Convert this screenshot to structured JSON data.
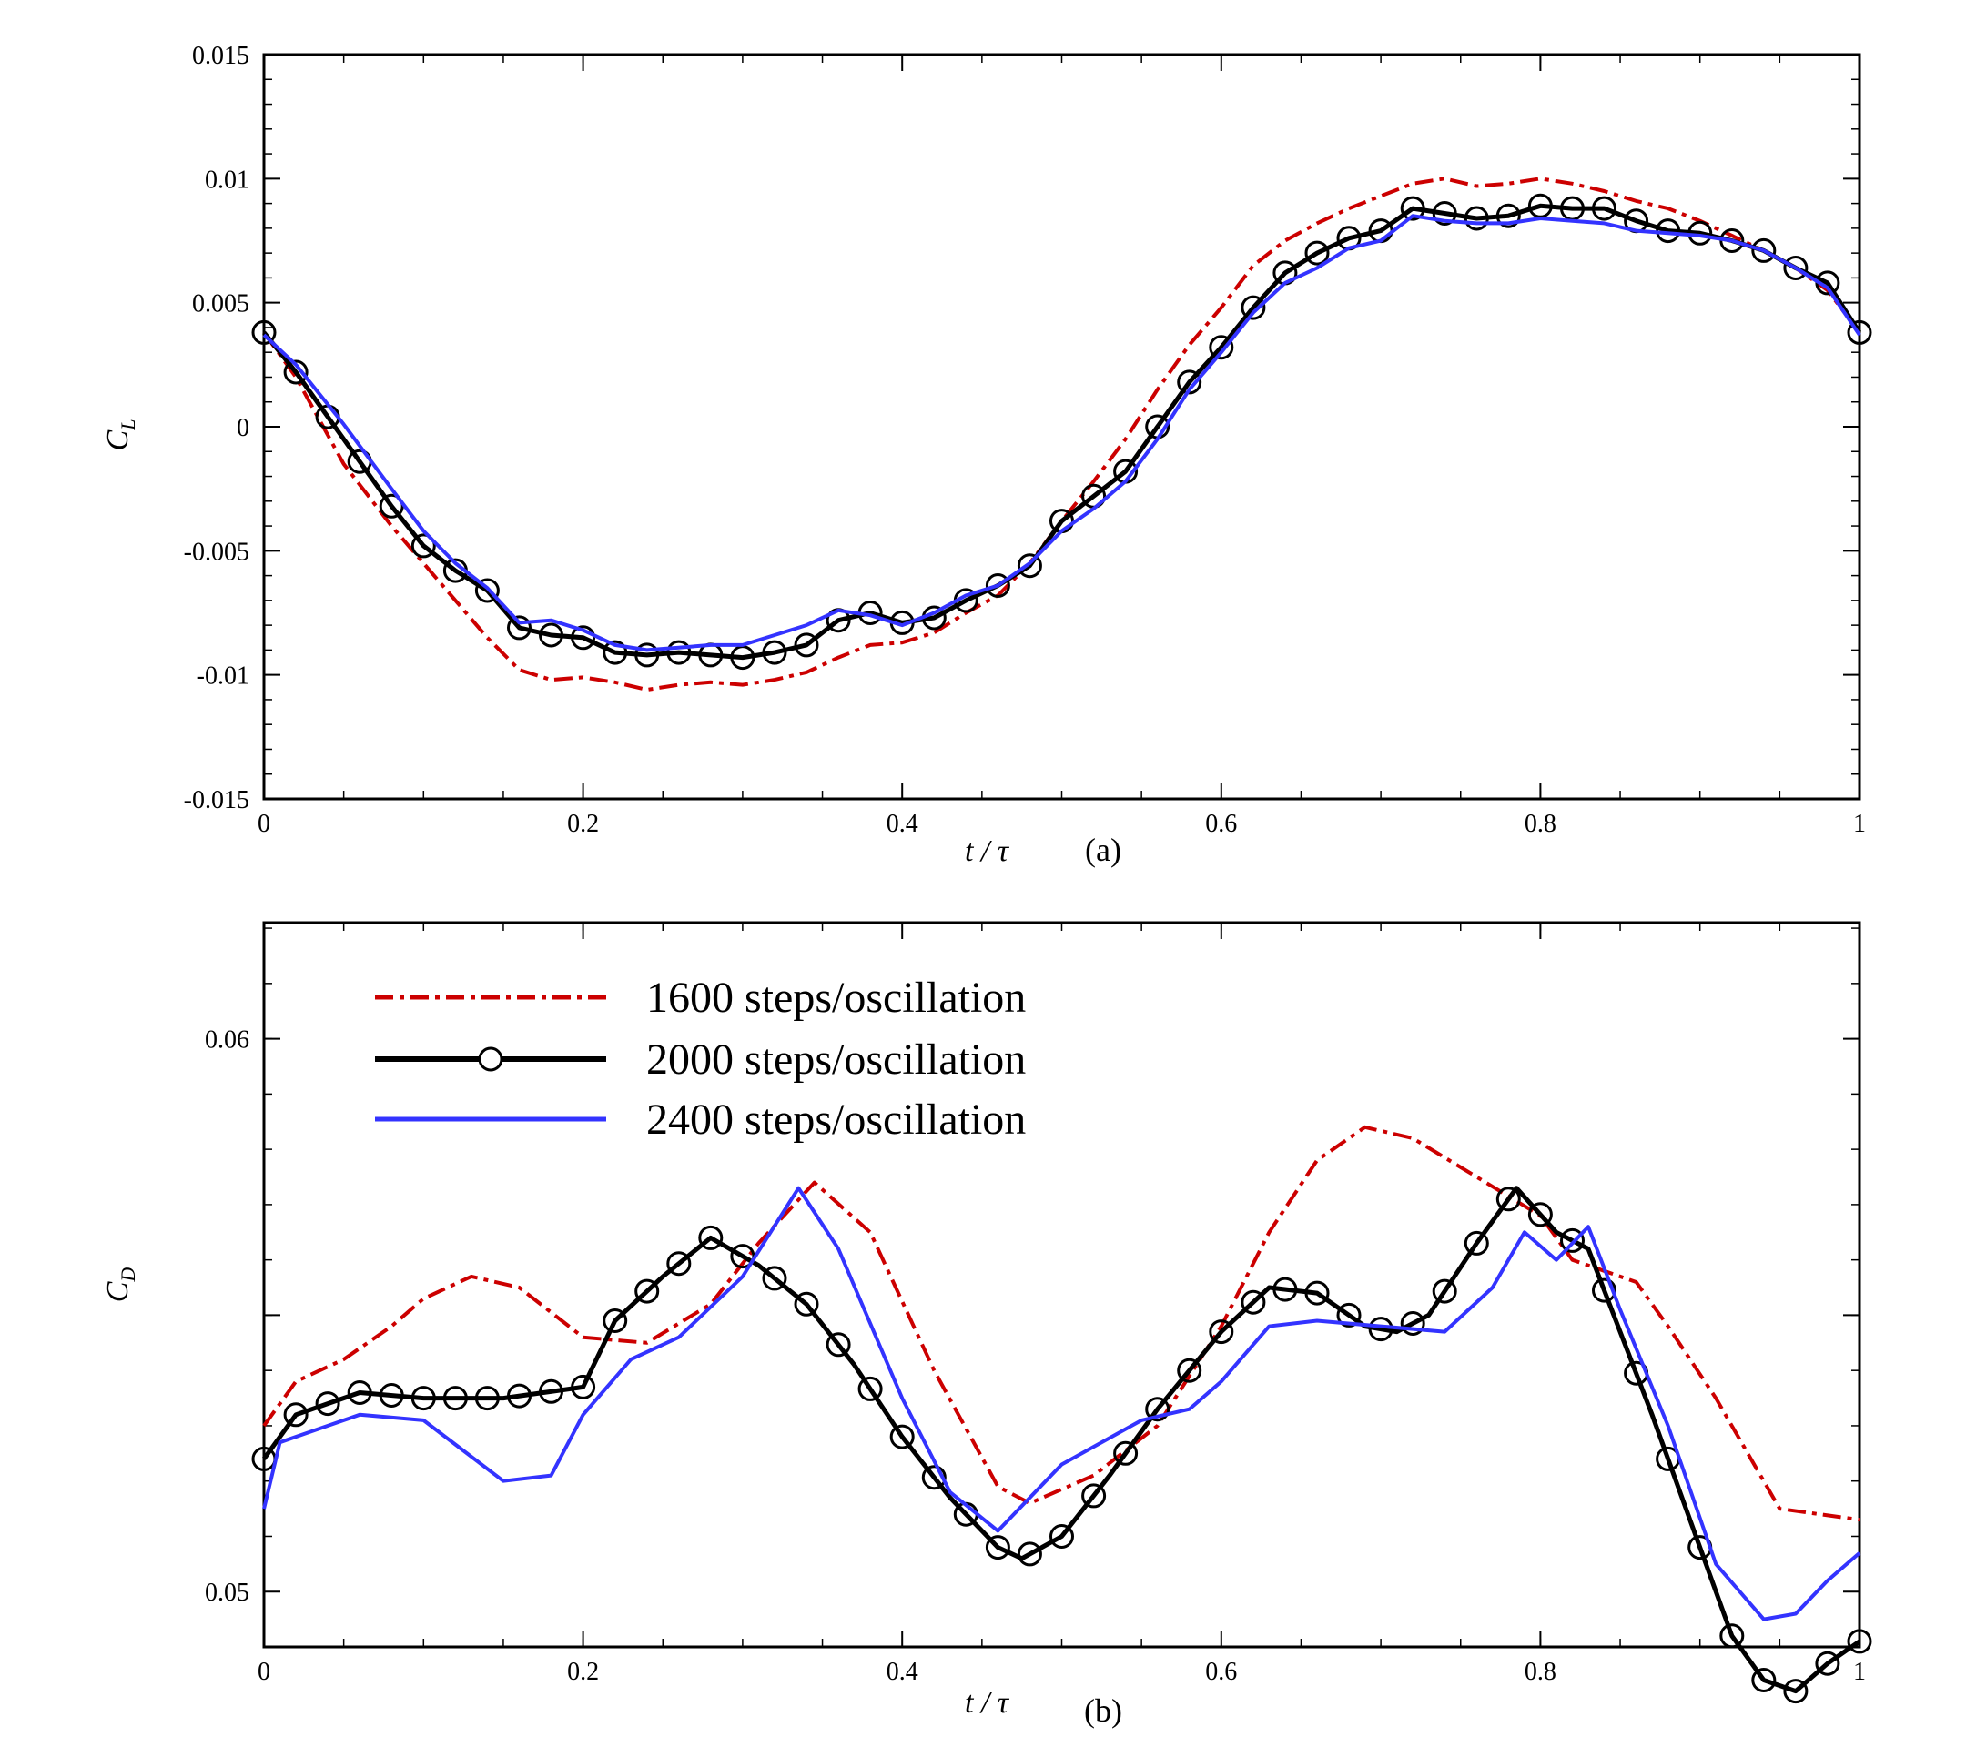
{
  "figure": {
    "series_styles": [
      {
        "name": "1600 steps/oscillation",
        "color": "#cc0000",
        "dash": "dashdot",
        "marker": "none"
      },
      {
        "name": "2000 steps/oscillation",
        "color": "#000000",
        "dash": "solid",
        "marker": "circle"
      },
      {
        "name": "2400 steps/oscillation",
        "color": "#3333ff",
        "dash": "solid",
        "marker": "none"
      }
    ]
  },
  "chart_data": [
    {
      "type": "line",
      "panel_label": "(a)",
      "xlabel": "t / τ",
      "ylabel": "C",
      "ylabel_sub": "L",
      "xlim": [
        0,
        1
      ],
      "ylim": [
        -0.015,
        0.015
      ],
      "xticks": [
        0,
        0.2,
        0.4,
        0.6,
        0.8,
        1
      ],
      "xtick_labels": [
        "0",
        "0.2",
        "0.4",
        "0.6",
        "0.8",
        "1"
      ],
      "yticks": [
        -0.015,
        -0.01,
        -0.005,
        0,
        0.005,
        0.01,
        0.015
      ],
      "ytick_labels": [
        "-0.015",
        "-0.01",
        "-0.005",
        "0",
        "0.005",
        "0.01",
        "0.015"
      ],
      "series": [
        {
          "name": "1600 steps/oscillation",
          "x": [
            0,
            0.02,
            0.05,
            0.08,
            0.1,
            0.12,
            0.14,
            0.16,
            0.18,
            0.2,
            0.22,
            0.24,
            0.26,
            0.28,
            0.3,
            0.32,
            0.34,
            0.36,
            0.38,
            0.4,
            0.42,
            0.44,
            0.46,
            0.48,
            0.5,
            0.52,
            0.54,
            0.56,
            0.58,
            0.6,
            0.62,
            0.64,
            0.66,
            0.68,
            0.7,
            0.72,
            0.74,
            0.76,
            0.78,
            0.8,
            0.82,
            0.84,
            0.86,
            0.88,
            0.9,
            0.92,
            0.94,
            0.96,
            0.98,
            1
          ],
          "values": [
            0.0038,
            0.002,
            -0.0015,
            -0.004,
            -0.0055,
            -0.007,
            -0.0085,
            -0.0098,
            -0.0102,
            -0.0101,
            -0.0103,
            -0.0106,
            -0.0104,
            -0.0103,
            -0.0104,
            -0.0102,
            -0.0099,
            -0.0093,
            -0.0088,
            -0.0087,
            -0.0083,
            -0.0075,
            -0.0068,
            -0.0055,
            -0.0038,
            -0.0022,
            -0.0005,
            0.0015,
            0.0033,
            0.0048,
            0.0065,
            0.0075,
            0.0082,
            0.0088,
            0.0093,
            0.0098,
            0.01,
            0.0097,
            0.0098,
            0.01,
            0.0098,
            0.0095,
            0.0091,
            0.0088,
            0.0083,
            0.0077,
            0.0071,
            0.0064,
            0.0055,
            0.0038
          ]
        },
        {
          "name": "2000 steps/oscillation",
          "x": [
            0,
            0.02,
            0.05,
            0.08,
            0.1,
            0.12,
            0.14,
            0.16,
            0.18,
            0.2,
            0.22,
            0.24,
            0.26,
            0.28,
            0.3,
            0.32,
            0.34,
            0.36,
            0.38,
            0.4,
            0.42,
            0.44,
            0.46,
            0.48,
            0.5,
            0.52,
            0.54,
            0.56,
            0.58,
            0.6,
            0.62,
            0.64,
            0.66,
            0.68,
            0.7,
            0.72,
            0.74,
            0.76,
            0.78,
            0.8,
            0.82,
            0.84,
            0.86,
            0.88,
            0.9,
            0.92,
            0.94,
            0.96,
            0.98,
            1
          ],
          "values": [
            0.0038,
            0.0022,
            -0.0005,
            -0.0032,
            -0.0048,
            -0.0058,
            -0.0066,
            -0.0081,
            -0.0084,
            -0.0085,
            -0.0091,
            -0.0092,
            -0.0091,
            -0.0092,
            -0.0093,
            -0.0091,
            -0.0088,
            -0.0078,
            -0.0075,
            -0.0079,
            -0.0077,
            -0.007,
            -0.0064,
            -0.0056,
            -0.0038,
            -0.0028,
            -0.0018,
            0,
            0.0018,
            0.0032,
            0.0048,
            0.0062,
            0.007,
            0.0076,
            0.0079,
            0.0088,
            0.0086,
            0.0084,
            0.0085,
            0.0089,
            0.0088,
            0.0088,
            0.0083,
            0.0079,
            0.0078,
            0.0075,
            0.0071,
            0.0064,
            0.0058,
            0.0038
          ]
        },
        {
          "name": "2400 steps/oscillation",
          "x": [
            0,
            0.02,
            0.05,
            0.08,
            0.1,
            0.12,
            0.14,
            0.16,
            0.18,
            0.2,
            0.22,
            0.24,
            0.26,
            0.28,
            0.3,
            0.32,
            0.34,
            0.36,
            0.38,
            0.4,
            0.42,
            0.44,
            0.46,
            0.48,
            0.5,
            0.52,
            0.54,
            0.56,
            0.58,
            0.6,
            0.62,
            0.64,
            0.66,
            0.68,
            0.7,
            0.72,
            0.74,
            0.76,
            0.78,
            0.8,
            0.82,
            0.84,
            0.86,
            0.88,
            0.9,
            0.92,
            0.94,
            0.96,
            0.98,
            1
          ],
          "values": [
            0.0037,
            0.0025,
            0.0001,
            -0.0025,
            -0.0042,
            -0.0055,
            -0.0065,
            -0.0079,
            -0.0078,
            -0.0082,
            -0.0088,
            -0.009,
            -0.0089,
            -0.0088,
            -0.0088,
            -0.0084,
            -0.008,
            -0.0074,
            -0.0076,
            -0.008,
            -0.0075,
            -0.0068,
            -0.0064,
            -0.0055,
            -0.0042,
            -0.0033,
            -0.0022,
            -0.0005,
            0.0015,
            0.003,
            0.0046,
            0.0058,
            0.0064,
            0.0072,
            0.0075,
            0.0085,
            0.0083,
            0.0082,
            0.0082,
            0.0084,
            0.0083,
            0.0082,
            0.0079,
            0.0078,
            0.0077,
            0.0075,
            0.0071,
            0.0064,
            0.0056,
            0.0037
          ]
        }
      ]
    },
    {
      "type": "line",
      "panel_label": "(b)",
      "xlabel": "t / τ",
      "ylabel": "C",
      "ylabel_sub": "D",
      "xlim": [
        0,
        1
      ],
      "ylim": [
        0.049,
        0.0621
      ],
      "xticks": [
        0,
        0.2,
        0.4,
        0.6,
        0.8,
        1
      ],
      "xtick_labels": [
        "0",
        "0.2",
        "0.4",
        "0.6",
        "0.8",
        "1"
      ],
      "yticks": [
        0.05,
        0.055,
        0.06
      ],
      "ytick_labels": [
        "0.05",
        "",
        "0.06"
      ],
      "legend": {
        "position": "top-left",
        "entries": [
          "1600 steps/oscillation",
          "2000 steps/oscillation",
          "2400 steps/oscillation"
        ]
      },
      "series": [
        {
          "name": "1600 steps/oscillation",
          "x": [
            0,
            0.02,
            0.05,
            0.08,
            0.1,
            0.13,
            0.16,
            0.2,
            0.24,
            0.28,
            0.31,
            0.345,
            0.38,
            0.42,
            0.46,
            0.48,
            0.52,
            0.56,
            0.6,
            0.63,
            0.66,
            0.69,
            0.72,
            0.76,
            0.8,
            0.82,
            0.84,
            0.86,
            0.88,
            0.91,
            0.95,
            1
          ],
          "values": [
            0.053,
            0.0538,
            0.0542,
            0.0548,
            0.0553,
            0.0557,
            0.0555,
            0.0546,
            0.0545,
            0.0552,
            0.0563,
            0.0574,
            0.0565,
            0.054,
            0.0519,
            0.0516,
            0.0521,
            0.053,
            0.0548,
            0.0565,
            0.0578,
            0.0584,
            0.0582,
            0.0575,
            0.0568,
            0.056,
            0.0558,
            0.0556,
            0.0548,
            0.0535,
            0.0515,
            0.0513
          ]
        },
        {
          "name": "2000 steps/oscillation",
          "x": [
            0,
            0.02,
            0.04,
            0.06,
            0.1,
            0.15,
            0.2,
            0.22,
            0.25,
            0.28,
            0.31,
            0.34,
            0.37,
            0.4,
            0.43,
            0.46,
            0.475,
            0.5,
            0.53,
            0.56,
            0.6,
            0.63,
            0.66,
            0.69,
            0.71,
            0.73,
            0.76,
            0.785,
            0.81,
            0.83,
            0.85,
            0.87,
            0.9,
            0.92,
            0.94,
            0.96,
            0.98,
            1
          ],
          "values": [
            0.0524,
            0.0532,
            0.0534,
            0.0536,
            0.0535,
            0.0535,
            0.0537,
            0.0549,
            0.0557,
            0.0564,
            0.0559,
            0.0552,
            0.0541,
            0.0528,
            0.0517,
            0.0508,
            0.0506,
            0.051,
            0.0521,
            0.0533,
            0.0547,
            0.0555,
            0.0554,
            0.0548,
            0.0547,
            0.055,
            0.0563,
            0.0573,
            0.0565,
            0.0562,
            0.0547,
            0.0532,
            0.0508,
            0.0492,
            0.0484,
            0.0482,
            0.0487,
            0.0491
          ]
        },
        {
          "name": "2400 steps/oscillation",
          "x": [
            0,
            0.01,
            0.03,
            0.06,
            0.1,
            0.15,
            0.18,
            0.2,
            0.23,
            0.26,
            0.3,
            0.335,
            0.36,
            0.4,
            0.43,
            0.46,
            0.5,
            0.55,
            0.58,
            0.6,
            0.63,
            0.66,
            0.7,
            0.74,
            0.77,
            0.79,
            0.81,
            0.83,
            0.85,
            0.88,
            0.91,
            0.94,
            0.96,
            0.98,
            1
          ],
          "values": [
            0.0515,
            0.0527,
            0.0529,
            0.0532,
            0.0531,
            0.052,
            0.0521,
            0.0532,
            0.0542,
            0.0546,
            0.0557,
            0.0573,
            0.0562,
            0.0535,
            0.0518,
            0.0511,
            0.0523,
            0.0531,
            0.0533,
            0.0538,
            0.0548,
            0.0549,
            0.0548,
            0.0547,
            0.0555,
            0.0565,
            0.056,
            0.0566,
            0.0551,
            0.053,
            0.0505,
            0.0495,
            0.0496,
            0.0502,
            0.0507
          ]
        }
      ]
    }
  ]
}
